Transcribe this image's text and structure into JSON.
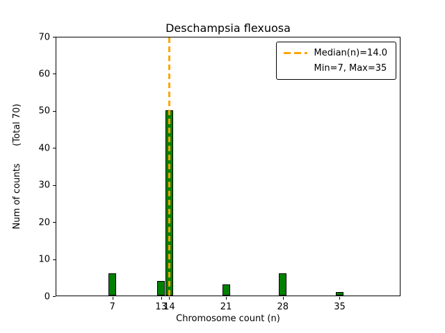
{
  "chart_data": {
    "type": "bar",
    "title": "Deschampsia flexuosa",
    "xlabel": "Chromosome count (n)",
    "ylabel": "Num of counts      (Total 70)",
    "x": [
      7,
      13,
      14,
      21,
      28,
      35
    ],
    "values": [
      6,
      4,
      50,
      3,
      6,
      1
    ],
    "total": 70,
    "median": 14.0,
    "min": 7,
    "max": 35,
    "xticks": [
      7,
      13,
      14,
      21,
      28,
      35
    ],
    "yticks": [
      0,
      10,
      20,
      30,
      40,
      50,
      60,
      70
    ],
    "xlim": [
      0,
      42.5
    ],
    "ylim": [
      0,
      70
    ],
    "grid": false,
    "bar_color": "#008000",
    "bar_edge_color": "#000000",
    "median_color": "#ffa500",
    "legend_position": "upper-right",
    "legend": {
      "entries": [
        {
          "label": "Median(n)=14.0",
          "handle": "dashed-line"
        },
        {
          "label": "Min=7, Max=35",
          "handle": "none"
        }
      ]
    }
  }
}
